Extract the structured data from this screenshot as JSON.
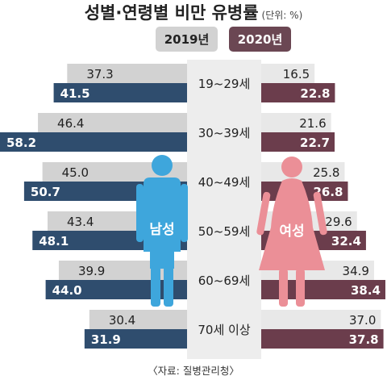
{
  "title": "성별·연령별 비만 유병률",
  "unit": "(단위: %)",
  "source": "〈자료: 질병관리청〉",
  "colors": {
    "male_2019": "#d2d2d2",
    "male_2020": "#2f4d6e",
    "female_2019": "#e8e8e8",
    "female_2020": "#6b3d4c",
    "center": "#ededed",
    "male_figure": "#3ea6dc",
    "female_figure": "#eb8f97",
    "legend_2019": "#d2d2d2",
    "legend_2020": "#6b4753"
  },
  "icons": {
    "male": "male-figure-icon",
    "female": "female-figure-icon"
  },
  "chart_data": {
    "type": "bar",
    "layout": "butterfly",
    "categories": [
      "19~29세",
      "30~39세",
      "40~49세",
      "50~59세",
      "60~69세",
      "70세 이상"
    ],
    "legend": [
      "2019년",
      "2020년"
    ],
    "groups": [
      {
        "name": "남성",
        "series": [
          {
            "name": "2019년",
            "values": [
              37.3,
              46.4,
              45.0,
              43.4,
              39.9,
              30.4
            ]
          },
          {
            "name": "2020년",
            "values": [
              41.5,
              58.2,
              50.7,
              48.1,
              44.0,
              31.9
            ]
          }
        ]
      },
      {
        "name": "여성",
        "series": [
          {
            "name": "2019년",
            "values": [
              16.5,
              21.6,
              25.8,
              29.6,
              34.9,
              37.0
            ]
          },
          {
            "name": "2020년",
            "values": [
              22.8,
              22.7,
              26.8,
              32.4,
              38.4,
              37.8
            ]
          }
        ]
      }
    ],
    "value_labels": {
      "male_2019": [
        "37.3",
        "46.4",
        "45.0",
        "43.4",
        "39.9",
        "30.4"
      ],
      "male_2020": [
        "41.5",
        "58.2",
        "50.7",
        "48.1",
        "44.0",
        "31.9"
      ],
      "female_2019": [
        "16.5",
        "21.6",
        "25.8",
        "29.6",
        "34.9",
        "37.0"
      ],
      "female_2020": [
        "22.8",
        "22.7",
        "26.8",
        "32.4",
        "38.4",
        "37.8"
      ]
    }
  }
}
